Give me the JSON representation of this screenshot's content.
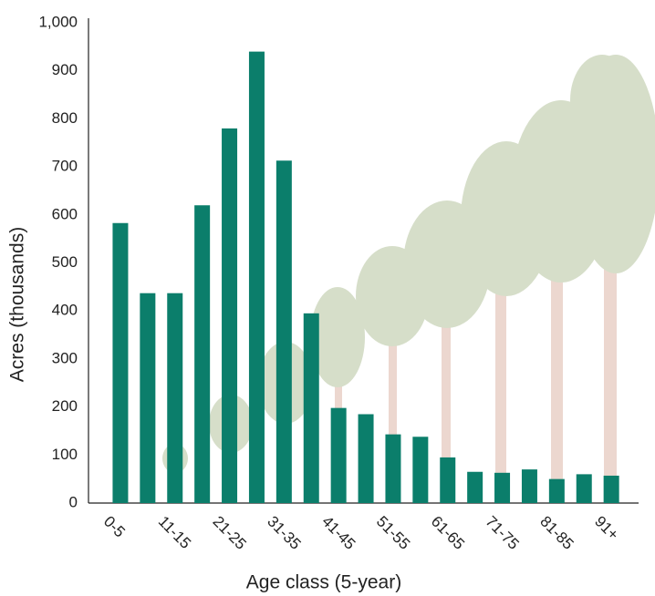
{
  "chart_data": {
    "type": "bar",
    "x_label": "Age class (5-year)",
    "y_label": "Acres (thousands)",
    "categories": [
      "0-5",
      null,
      "11-15",
      null,
      "21-25",
      null,
      "31-35",
      null,
      "41-45",
      null,
      "51-55",
      null,
      "61-65",
      null,
      "71-75",
      null,
      "81-85",
      null,
      "91+"
    ],
    "values": [
      583,
      437,
      437,
      620,
      780,
      940,
      713,
      395,
      198,
      185,
      143,
      138,
      95,
      65,
      63,
      70,
      50,
      60,
      57
    ],
    "color": "#0b7e6b",
    "ylim": [
      0,
      1000
    ],
    "yticks": [
      0,
      100,
      200,
      300,
      400,
      500,
      600,
      700,
      800,
      900,
      {
        "value": 1000,
        "label": "1,000"
      }
    ],
    "grid": false
  }
}
